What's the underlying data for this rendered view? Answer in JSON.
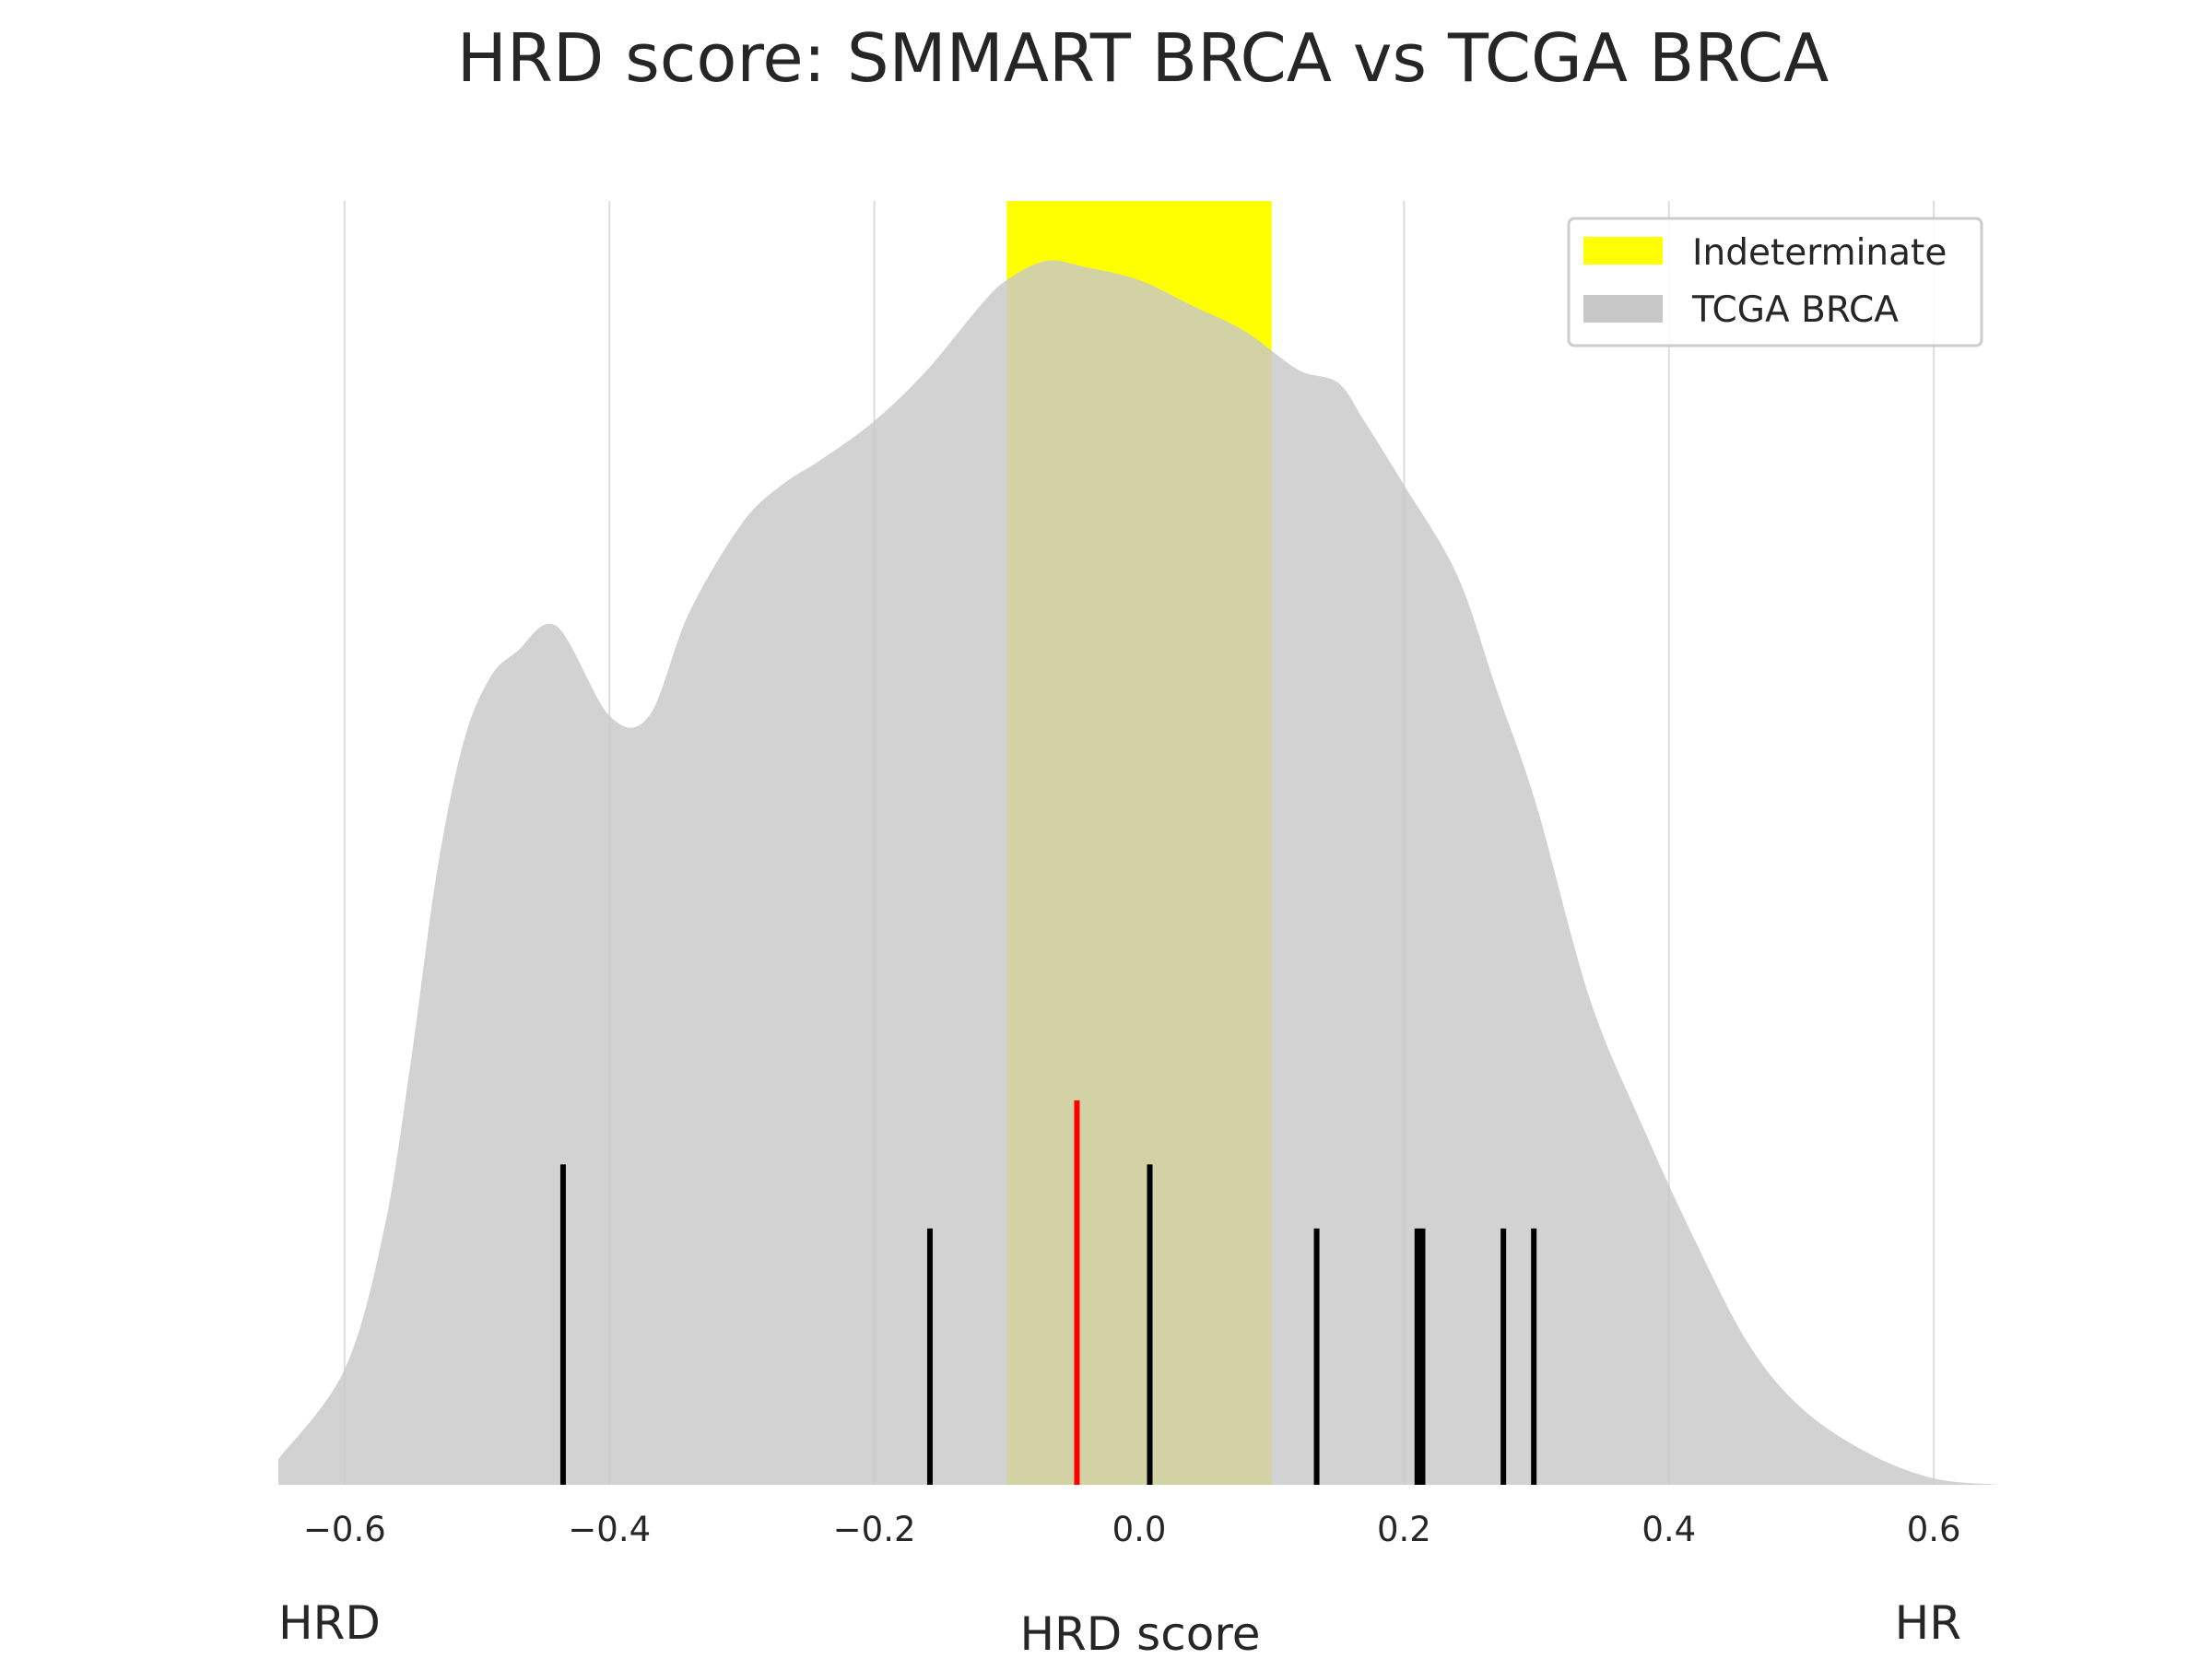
{
  "chart_data": {
    "type": "area",
    "title": "HRD score: SMMART BRCA vs TCGA BRCA",
    "xlabel": "HRD score",
    "ylabel": "",
    "xlim": [
      -0.65,
      0.65
    ],
    "ylim": [
      0,
      1
    ],
    "x_ticks": [
      -0.6,
      -0.4,
      -0.2,
      0.0,
      0.2,
      0.4,
      0.6
    ],
    "x_tick_labels": [
      "−0.6",
      "−0.4",
      "−0.2",
      "0.0",
      "0.2",
      "0.4",
      "0.6"
    ],
    "grid": "vertical",
    "left_end_label": "HRD",
    "right_end_label": "HR",
    "legend": {
      "position": "top-right",
      "entries": [
        {
          "label": "Indeterminate",
          "color": "#ffff00"
        },
        {
          "label": "TCGA BRCA",
          "color": "#c8c8c8"
        }
      ]
    },
    "indeterminate_band": {
      "x_min": -0.1,
      "x_max": 0.1,
      "color": "#ffff00"
    },
    "tcga_density": {
      "name": "TCGA BRCA",
      "color": "#c8c8c8",
      "x": [
        -0.65,
        -0.6,
        -0.57,
        -0.55,
        -0.53,
        -0.51,
        -0.49,
        -0.47,
        -0.44,
        -0.4,
        -0.37,
        -0.34,
        -0.3,
        -0.27,
        -0.24,
        -0.2,
        -0.16,
        -0.12,
        -0.1,
        -0.07,
        -0.04,
        0.0,
        0.04,
        0.08,
        0.12,
        0.15,
        0.17,
        0.2,
        0.24,
        0.27,
        0.3,
        0.34,
        0.38,
        0.42,
        0.46,
        0.5,
        0.55,
        0.6,
        0.65
      ],
      "y": [
        0.02,
        0.09,
        0.2,
        0.33,
        0.48,
        0.58,
        0.63,
        0.65,
        0.67,
        0.6,
        0.6,
        0.68,
        0.75,
        0.78,
        0.8,
        0.83,
        0.87,
        0.92,
        0.94,
        0.955,
        0.95,
        0.94,
        0.92,
        0.9,
        0.87,
        0.86,
        0.83,
        0.78,
        0.71,
        0.62,
        0.53,
        0.38,
        0.28,
        0.19,
        0.11,
        0.06,
        0.025,
        0.005,
        0.0
      ]
    },
    "smmart_samples": {
      "color": "#000000",
      "x": [
        -0.435,
        -0.158,
        0.008,
        0.134,
        0.21,
        0.214,
        0.275,
        0.298
      ],
      "height": [
        0.25,
        0.2,
        0.25,
        0.2,
        0.2,
        0.2,
        0.2,
        0.2
      ]
    },
    "highlight_sample": {
      "x": -0.047,
      "height": 0.3,
      "color": "#ff0000"
    }
  }
}
